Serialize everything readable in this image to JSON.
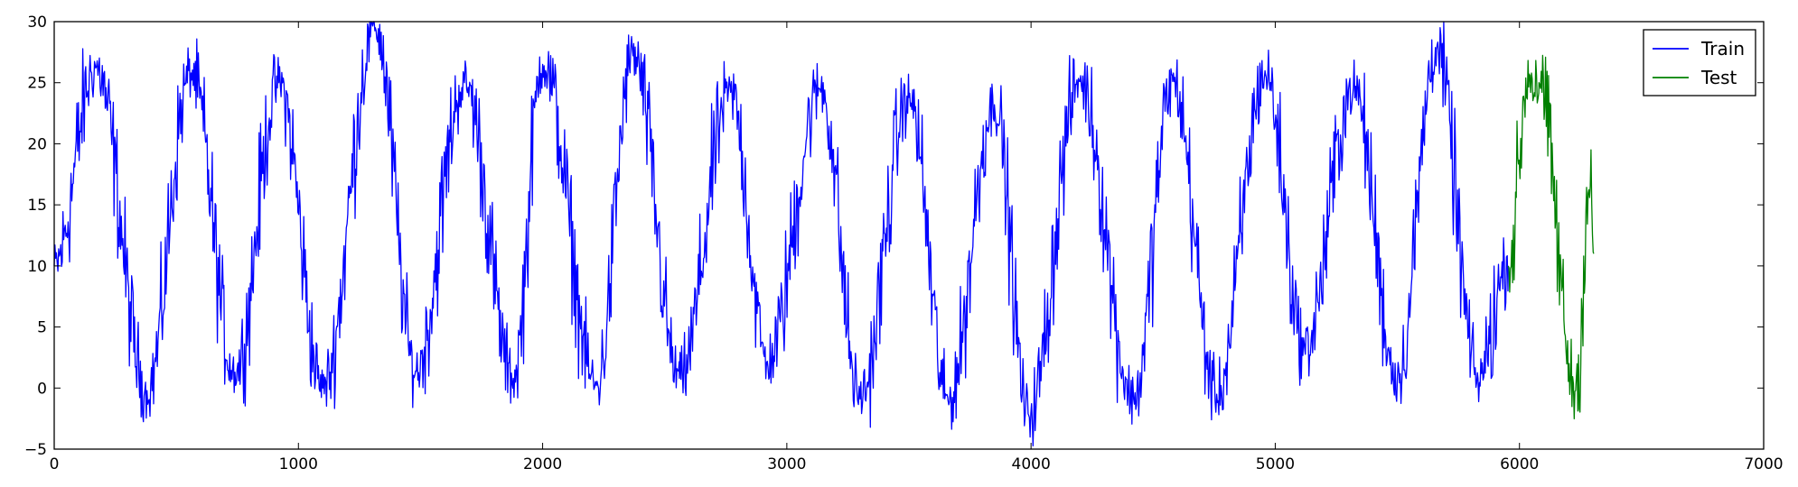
{
  "chart_data": {
    "type": "line",
    "title": "",
    "xlabel": "",
    "ylabel": "",
    "xlim": [
      0,
      7000
    ],
    "ylim": [
      -5,
      30
    ],
    "x_ticks": [
      0,
      1000,
      2000,
      3000,
      4000,
      5000,
      6000,
      7000
    ],
    "y_ticks": [
      -5,
      0,
      5,
      10,
      15,
      20,
      25,
      30
    ],
    "x_tick_labels": [
      "0",
      "1000",
      "2000",
      "3000",
      "4000",
      "5000",
      "6000",
      "7000"
    ],
    "y_tick_labels": [
      "−5",
      "0",
      "5",
      "10",
      "15",
      "20",
      "25",
      "30"
    ],
    "grid": false,
    "legend_position": "top-right",
    "series": [
      {
        "name": "Train",
        "color": "#0000ff",
        "x_range": [
          0,
          5954
        ],
        "pattern": "noisy seasonal series, period ~365, mean ~11, amplitude ~6, noise ~±4",
        "peaks": [
          {
            "x": 0,
            "y": 10
          },
          {
            "x": 170,
            "y": 26.2
          },
          {
            "x": 380,
            "y": -0.2
          },
          {
            "x": 560,
            "y": 25.8
          },
          {
            "x": 740,
            "y": 1.3
          },
          {
            "x": 920,
            "y": 25
          },
          {
            "x": 1100,
            "y": 0
          },
          {
            "x": 1315,
            "y": 29.5
          },
          {
            "x": 1480,
            "y": 1.4
          },
          {
            "x": 1680,
            "y": 25
          },
          {
            "x": 1880,
            "y": 0.8
          },
          {
            "x": 2000,
            "y": 26.5
          },
          {
            "x": 2220,
            "y": 0.2
          },
          {
            "x": 2370,
            "y": 27.2
          },
          {
            "x": 2560,
            "y": 0.8
          },
          {
            "x": 2770,
            "y": 24.2
          },
          {
            "x": 2920,
            "y": 2.2
          },
          {
            "x": 3140,
            "y": 24.5
          },
          {
            "x": 3300,
            "y": -0.9
          },
          {
            "x": 3500,
            "y": 23.8
          },
          {
            "x": 3660,
            "y": -1
          },
          {
            "x": 3850,
            "y": 23.2
          },
          {
            "x": 3990,
            "y": -2.2
          },
          {
            "x": 4200,
            "y": 25.1
          },
          {
            "x": 4420,
            "y": -0.9
          },
          {
            "x": 4580,
            "y": 25.1
          },
          {
            "x": 4760,
            "y": -0.5
          },
          {
            "x": 4960,
            "y": 25.7
          },
          {
            "x": 5120,
            "y": 3.3
          },
          {
            "x": 5320,
            "y": 24.6
          },
          {
            "x": 5500,
            "y": 0.8
          },
          {
            "x": 5660,
            "y": 27.7
          },
          {
            "x": 5830,
            "y": 0.8
          },
          {
            "x": 5954,
            "y": 10
          }
        ]
      },
      {
        "name": "Test",
        "color": "#008000",
        "x_range": [
          5954,
          6304
        ],
        "pattern": "continuation of seasonal series",
        "peaks": [
          {
            "x": 5954,
            "y": 10
          },
          {
            "x": 6040,
            "y": 25.7
          },
          {
            "x": 6080,
            "y": 25
          },
          {
            "x": 6230,
            "y": -0.2
          },
          {
            "x": 6290,
            "y": 16.5
          },
          {
            "x": 6304,
            "y": 11
          }
        ]
      }
    ]
  }
}
